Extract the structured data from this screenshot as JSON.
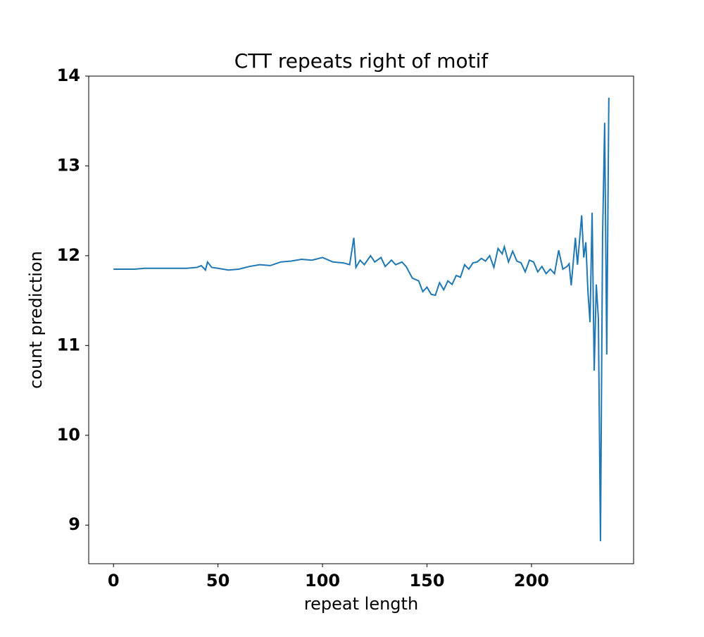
{
  "chart_data": {
    "type": "line",
    "title": "CTT repeats right of motif",
    "xlabel": "repeat length",
    "ylabel": "count prediction",
    "x": [
      0,
      5,
      10,
      15,
      20,
      25,
      30,
      35,
      40,
      42,
      44,
      45,
      47,
      50,
      55,
      60,
      65,
      70,
      75,
      80,
      85,
      90,
      95,
      100,
      105,
      110,
      113,
      115,
      116,
      118,
      120,
      123,
      125,
      128,
      130,
      133,
      135,
      138,
      140,
      143,
      146,
      148,
      150,
      152,
      154,
      156,
      158,
      160,
      162,
      164,
      166,
      168,
      170,
      172,
      174,
      176,
      178,
      180,
      182,
      184,
      186,
      187,
      189,
      191,
      193,
      195,
      197,
      199,
      201,
      203,
      205,
      207,
      209,
      211,
      213,
      215,
      217,
      218,
      219,
      221,
      222,
      224,
      225,
      226,
      227,
      228,
      229,
      230,
      231,
      232,
      233,
      234,
      235,
      236,
      237
    ],
    "series": [
      {
        "name": "count prediction",
        "color": "#1f77b4",
        "values": [
          11.85,
          11.85,
          11.85,
          11.86,
          11.86,
          11.86,
          11.86,
          11.86,
          11.87,
          11.89,
          11.84,
          11.93,
          11.87,
          11.86,
          11.84,
          11.85,
          11.88,
          11.9,
          11.89,
          11.93,
          11.94,
          11.96,
          11.95,
          11.98,
          11.93,
          11.92,
          11.9,
          12.2,
          11.87,
          11.95,
          11.9,
          12.0,
          11.93,
          11.98,
          11.88,
          11.95,
          11.9,
          11.93,
          11.88,
          11.75,
          11.72,
          11.6,
          11.65,
          11.57,
          11.56,
          11.7,
          11.62,
          11.72,
          11.68,
          11.78,
          11.76,
          11.9,
          11.85,
          11.92,
          11.93,
          11.97,
          11.94,
          12.0,
          11.87,
          12.08,
          12.02,
          12.1,
          11.93,
          12.05,
          11.94,
          11.92,
          11.82,
          11.95,
          11.93,
          11.82,
          11.88,
          11.8,
          11.85,
          11.8,
          12.06,
          11.85,
          11.88,
          11.91,
          11.67,
          12.2,
          11.9,
          12.45,
          11.98,
          12.15,
          11.6,
          11.26,
          12.48,
          10.72,
          11.68,
          11.3,
          8.82,
          12.2,
          13.48,
          10.9,
          13.76
        ]
      }
    ],
    "xlim": [
      -11.85,
      248.85
    ],
    "xticks": [
      0,
      50,
      100,
      150,
      200
    ],
    "ylim": [
      8.57,
      14.0
    ],
    "yticks": [
      9,
      10,
      11,
      12,
      13,
      14
    ]
  }
}
